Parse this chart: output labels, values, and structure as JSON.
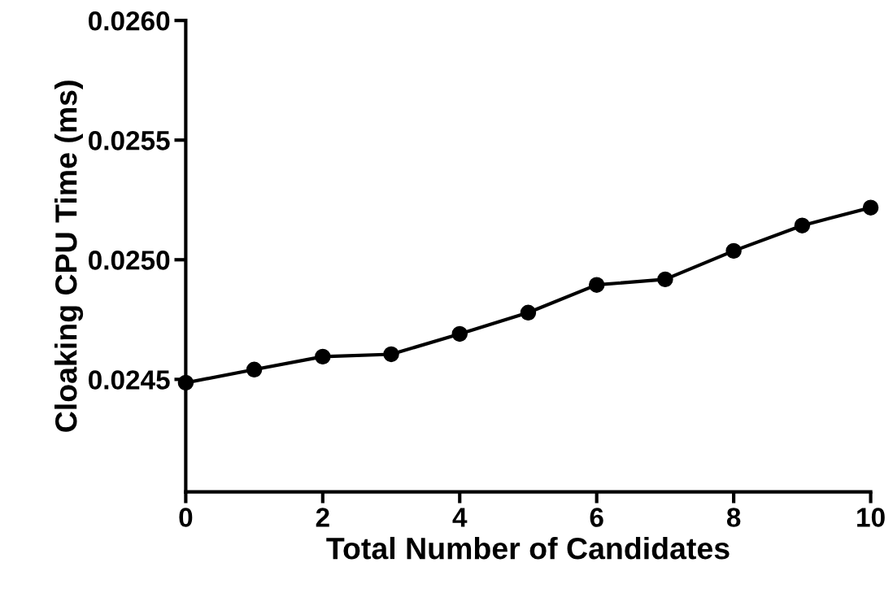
{
  "chart_data": {
    "type": "line",
    "xlabel": "Total Number of Candidates",
    "ylabel": "Cloaking CPU Time (ms)",
    "x": [
      0,
      1,
      2,
      3,
      4,
      5,
      6,
      7,
      8,
      9,
      10
    ],
    "series": [
      {
        "color": "#000000",
        "values": [
          0.024486,
          0.024541,
          0.024595,
          0.024605,
          0.02469,
          0.024779,
          0.024895,
          0.024918,
          0.025037,
          0.025143,
          0.025218
        ]
      }
    ],
    "xlim": [
      0,
      10
    ],
    "xticks": [
      0,
      2,
      4,
      6,
      8,
      10
    ],
    "ylim": [
      0.02403,
      0.026
    ],
    "yticks": [
      {
        "value": 0.0245,
        "label": "0.0245"
      },
      {
        "value": 0.025,
        "label": "0.0250"
      },
      {
        "value": 0.0255,
        "label": "0.0255"
      },
      {
        "value": 0.026,
        "label": "0.0260"
      }
    ],
    "marker": "circle",
    "line_style": "solid",
    "grid": false
  }
}
